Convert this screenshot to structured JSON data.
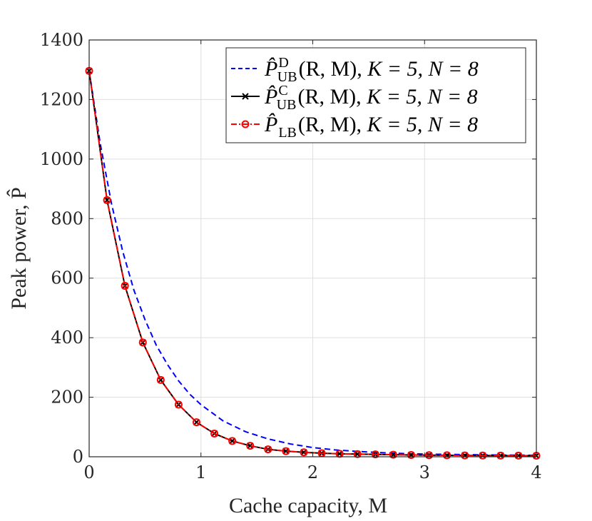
{
  "chart_data": {
    "type": "line",
    "title": "",
    "xlabel": "Cache capacity, M",
    "ylabel": "Peak power, P̂",
    "xlim": [
      0,
      4
    ],
    "ylim": [
      0,
      1400
    ],
    "xticks": [
      0,
      1,
      2,
      3,
      4
    ],
    "yticks": [
      0,
      200,
      400,
      600,
      800,
      1000,
      1200,
      1400
    ],
    "xtick_labels": [
      "0",
      "1",
      "2",
      "3",
      "4"
    ],
    "ytick_labels": [
      "0",
      "200",
      "400",
      "600",
      "800",
      "1000",
      "1200",
      "1400"
    ],
    "grid": true,
    "legend_position": "top-right",
    "series": [
      {
        "name": "P̂UB^D(R,M), K=5, N=8",
        "legend_main": "P̂",
        "legend_sub": "UB",
        "legend_sup": "D",
        "legend_args": "(R, M),",
        "legend_params": "K = 5, N = 8",
        "color": "#0000ff",
        "line_style": "dashed",
        "marker": "none",
        "x": [
          0,
          0.1,
          0.2,
          0.3,
          0.4,
          0.5,
          0.6,
          0.7,
          0.8,
          0.9,
          1.0,
          1.2,
          1.4,
          1.6,
          1.8,
          2.0,
          2.2,
          2.4,
          2.6,
          2.8,
          3.0,
          3.2,
          3.4,
          3.6,
          3.8,
          4.0
        ],
        "y": [
          1296,
          1050,
          850,
          690,
          560,
          460,
          375,
          310,
          255,
          210,
          175,
          120,
          84,
          60,
          43,
          31,
          23,
          18,
          14,
          11,
          9,
          8,
          7,
          6,
          5.5,
          5
        ]
      },
      {
        "name": "P̂UB^C(R,M), K=5, N=8",
        "legend_main": "P̂",
        "legend_sub": "UB",
        "legend_sup": "C",
        "legend_args": "(R, M),",
        "legend_params": "K = 5, N = 8",
        "color": "#000000",
        "line_style": "solid",
        "marker": "x",
        "x": [
          0,
          0.16,
          0.32,
          0.48,
          0.64,
          0.8,
          0.96,
          1.12,
          1.28,
          1.44,
          1.6,
          1.76,
          1.92,
          2.08,
          2.24,
          2.4,
          2.56,
          2.72,
          2.88,
          3.04,
          3.2,
          3.36,
          3.52,
          3.68,
          3.84,
          4.0
        ],
        "y": [
          1296,
          862,
          574,
          384,
          258,
          175,
          116,
          78,
          53,
          37,
          25,
          19,
          15,
          12,
          10,
          9,
          8,
          7,
          6,
          5.5,
          5,
          4.6,
          4.2,
          4,
          3.8,
          3.5
        ]
      },
      {
        "name": "P̂LB(R,M), K=5, N=8",
        "legend_main": "P̂",
        "legend_sub": "LB",
        "legend_sup": "",
        "legend_args": "(R, M),",
        "legend_params": "K = 5, N = 8",
        "color": "#ff0000",
        "line_style": "dash-dot",
        "marker": "o",
        "x": [
          0,
          0.16,
          0.32,
          0.48,
          0.64,
          0.8,
          0.96,
          1.12,
          1.28,
          1.44,
          1.6,
          1.76,
          1.92,
          2.08,
          2.24,
          2.4,
          2.56,
          2.72,
          2.88,
          3.04,
          3.2,
          3.36,
          3.52,
          3.68,
          3.84,
          4.0
        ],
        "y": [
          1296,
          862,
          574,
          384,
          258,
          175,
          116,
          78,
          53,
          37,
          25,
          19,
          15,
          12,
          10,
          9,
          8,
          7,
          6,
          5.5,
          5,
          4.6,
          4.2,
          4,
          3.8,
          3.5
        ]
      }
    ]
  }
}
